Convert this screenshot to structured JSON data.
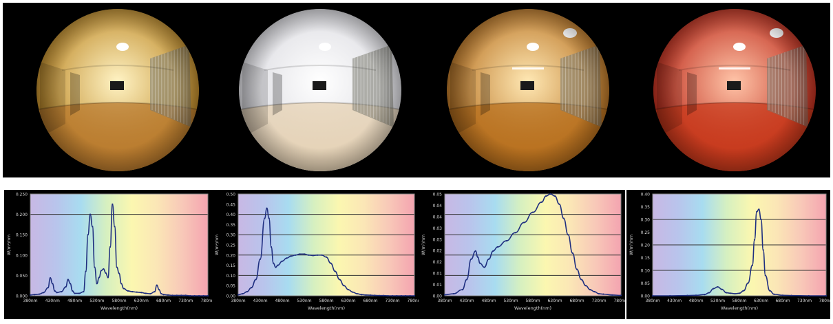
{
  "photos": [
    {
      "name": "room-photo-warm",
      "tint_center": "#fff3c4",
      "tint_edge": "#b8801a",
      "floor": "#b97a2e"
    },
    {
      "name": "room-photo-white",
      "tint_center": "#ffffff",
      "tint_edge": "#d8d8de",
      "floor": "#e6d2b4"
    },
    {
      "name": "room-photo-amber",
      "tint_center": "#ffe8b4",
      "tint_edge": "#b36a18",
      "floor": "#b8701e"
    },
    {
      "name": "room-photo-red",
      "tint_center": "#ffc4a8",
      "tint_edge": "#b81f10",
      "floor": "#c83a1c"
    }
  ],
  "spectrum_colors": [
    "#c8b8e4",
    "#b9c4ec",
    "#a8dcf0",
    "#d6f0c0",
    "#fbf7b0",
    "#fbe6b6",
    "#f8c8b8",
    "#f4a4b0"
  ],
  "line_color": "#1f2f80",
  "chart_data": [
    {
      "type": "line",
      "xlabel": "Wavelength(nm)",
      "ylabel": "W/m²/nm",
      "xlim": [
        380,
        780
      ],
      "ylim": [
        0,
        0.25
      ],
      "ytick_labels": [
        "0.000",
        "0.050",
        "0.100",
        "0.150",
        "0.200",
        "0.250"
      ],
      "xtick_labels": [
        "380nm",
        "430nm",
        "480nm",
        "530nm",
        "580nm",
        "630nm",
        "680nm",
        "730nm",
        "780nm"
      ],
      "grid_lines": [
        0.2
      ],
      "x": [
        380,
        390,
        400,
        410,
        420,
        425,
        430,
        435,
        440,
        450,
        460,
        465,
        470,
        475,
        480,
        490,
        500,
        505,
        510,
        515,
        520,
        525,
        530,
        535,
        540,
        545,
        550,
        555,
        560,
        565,
        570,
        575,
        580,
        585,
        590,
        600,
        610,
        620,
        630,
        640,
        650,
        660,
        665,
        670,
        675,
        680,
        690,
        700,
        710,
        720,
        730,
        740,
        750,
        760,
        770,
        780
      ],
      "values": [
        0.002,
        0.003,
        0.004,
        0.008,
        0.02,
        0.044,
        0.03,
        0.012,
        0.008,
        0.01,
        0.022,
        0.04,
        0.03,
        0.012,
        0.006,
        0.006,
        0.01,
        0.06,
        0.15,
        0.2,
        0.17,
        0.07,
        0.03,
        0.045,
        0.062,
        0.066,
        0.056,
        0.045,
        0.12,
        0.225,
        0.17,
        0.07,
        0.055,
        0.03,
        0.018,
        0.012,
        0.01,
        0.009,
        0.008,
        0.006,
        0.005,
        0.01,
        0.026,
        0.015,
        0.005,
        0.003,
        0.002,
        0.001,
        0.001,
        0.001,
        0.001,
        0.0,
        0.0,
        0.0,
        0.0,
        0.0
      ]
    },
    {
      "type": "line",
      "xlabel": "Wavelength(nm)",
      "ylabel": "W/m²/nm",
      "xlim": [
        380,
        780
      ],
      "ylim": [
        0,
        0.5
      ],
      "ytick_labels": [
        "0.00",
        "0.05",
        "0.10",
        "0.15",
        "0.20",
        "0.25",
        "0.30",
        "0.35",
        "0.40",
        "0.45",
        "0.50"
      ],
      "xtick_labels": [
        "380nm",
        "430nm",
        "480nm",
        "530nm",
        "580nm",
        "630nm",
        "680nm",
        "730nm",
        "780nm"
      ],
      "grid_lines": [
        0.1,
        0.2,
        0.3,
        0.4
      ],
      "x": [
        380,
        390,
        400,
        410,
        420,
        430,
        440,
        445,
        450,
        455,
        460,
        465,
        470,
        480,
        490,
        500,
        510,
        520,
        530,
        540,
        550,
        560,
        570,
        580,
        590,
        600,
        610,
        620,
        630,
        640,
        650,
        660,
        670,
        680,
        690,
        700,
        710,
        720,
        730,
        740,
        750,
        760,
        770,
        780
      ],
      "values": [
        0.005,
        0.01,
        0.02,
        0.04,
        0.08,
        0.18,
        0.38,
        0.43,
        0.38,
        0.24,
        0.16,
        0.14,
        0.15,
        0.17,
        0.185,
        0.195,
        0.2,
        0.205,
        0.205,
        0.2,
        0.198,
        0.2,
        0.2,
        0.19,
        0.16,
        0.12,
        0.08,
        0.05,
        0.03,
        0.018,
        0.01,
        0.006,
        0.004,
        0.003,
        0.002,
        0.001,
        0.001,
        0.0,
        0.0,
        0.0,
        0.0,
        0.0,
        0.0,
        0.0
      ]
    },
    {
      "type": "line",
      "xlabel": "Wavelength(nm)",
      "ylabel": "W/m²/nm",
      "xlim": [
        380,
        780
      ],
      "ylim": [
        0,
        0.05
      ],
      "ytick_labels": [
        "0.00",
        "0.01",
        "0.01",
        "0.02",
        "0.02",
        "0.03",
        "0.03",
        "0.04",
        "0.04",
        "0.05"
      ],
      "xtick_labels": [
        "380nm",
        "430nm",
        "480nm",
        "530nm",
        "580nm",
        "630nm",
        "680nm",
        "730nm",
        "780nm"
      ],
      "grid_lines": [
        0.01,
        0.02,
        0.03,
        0.04
      ],
      "x": [
        380,
        400,
        420,
        430,
        440,
        450,
        455,
        460,
        470,
        480,
        490,
        500,
        520,
        540,
        560,
        580,
        600,
        610,
        620,
        630,
        640,
        650,
        660,
        670,
        680,
        690,
        700,
        710,
        720,
        730,
        740,
        760,
        780
      ],
      "values": [
        0.0005,
        0.001,
        0.003,
        0.008,
        0.018,
        0.022,
        0.019,
        0.016,
        0.014,
        0.018,
        0.022,
        0.024,
        0.027,
        0.031,
        0.036,
        0.041,
        0.046,
        0.049,
        0.05,
        0.049,
        0.045,
        0.038,
        0.03,
        0.021,
        0.013,
        0.008,
        0.005,
        0.003,
        0.002,
        0.001,
        0.0008,
        0.0004,
        0.0002
      ]
    },
    {
      "type": "line",
      "xlabel": "Wavelength(nm)",
      "ylabel": "W/m²/nm",
      "xlim": [
        380,
        780
      ],
      "ylim": [
        0,
        0.4
      ],
      "ytick_labels": [
        "0.00",
        "0.05",
        "0.10",
        "0.15",
        "0.20",
        "0.25",
        "0.30",
        "0.35",
        "0.40"
      ],
      "xtick_labels": [
        "380nm",
        "430nm",
        "480nm",
        "530nm",
        "580nm",
        "630nm",
        "680nm",
        "730nm",
        "780nm"
      ],
      "grid_lines": [
        0.1,
        0.2,
        0.3
      ],
      "x": [
        380,
        420,
        460,
        480,
        500,
        510,
        520,
        530,
        540,
        550,
        560,
        570,
        580,
        590,
        600,
        610,
        615,
        620,
        625,
        630,
        635,
        640,
        650,
        660,
        680,
        700,
        740,
        780
      ],
      "values": [
        0.0,
        0.0,
        0.001,
        0.002,
        0.005,
        0.012,
        0.028,
        0.035,
        0.025,
        0.012,
        0.01,
        0.008,
        0.01,
        0.02,
        0.05,
        0.12,
        0.22,
        0.33,
        0.34,
        0.3,
        0.18,
        0.08,
        0.02,
        0.006,
        0.002,
        0.001,
        0.0,
        0.0
      ]
    }
  ]
}
